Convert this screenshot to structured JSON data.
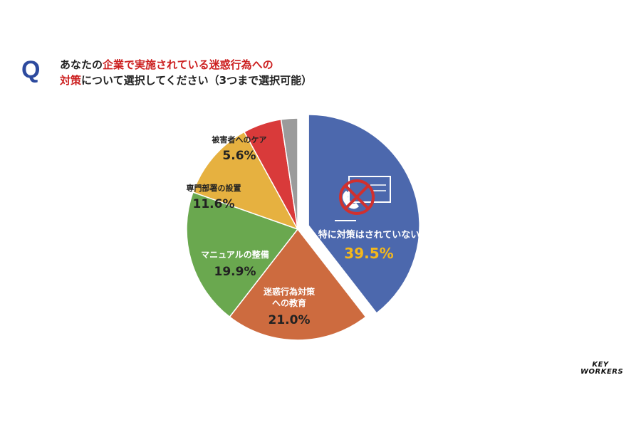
{
  "question": {
    "mark": "Q",
    "line1_a": "あなたの",
    "line1_b": "企業で実施されている迷惑行為への",
    "line2_a": "対策",
    "line2_b": "について選択してください（3つまで選択可能）"
  },
  "colors": {
    "question_mark": "#2d4a9e",
    "highlight": "#cc1f1f",
    "value_highlight": "#f5b81a"
  },
  "chart_data": {
    "type": "pie",
    "slices": [
      {
        "label": "特に対策はされていない",
        "value": 39.5,
        "display": "39.5%",
        "color": "#4c68ad",
        "exploded": true,
        "icon": "prohibited-phone-icon"
      },
      {
        "label": "迷惑行為対策への教育",
        "value": 21.0,
        "display": "21.0%",
        "color": "#cd6b3f"
      },
      {
        "label": "マニュアルの整備",
        "value": 19.9,
        "display": "19.9%",
        "color": "#6aa84f"
      },
      {
        "label": "専門部署の設置",
        "value": 11.6,
        "display": "11.6%",
        "color": "#e6b140"
      },
      {
        "label": "被害者へのケア",
        "value": 5.6,
        "display": "5.6%",
        "color": "#d93a3a"
      },
      {
        "label": "",
        "value": 2.4,
        "display": "",
        "color": "#9b9b9b"
      }
    ]
  },
  "logo": {
    "line1": "KEY",
    "line2": "WORKERS"
  }
}
